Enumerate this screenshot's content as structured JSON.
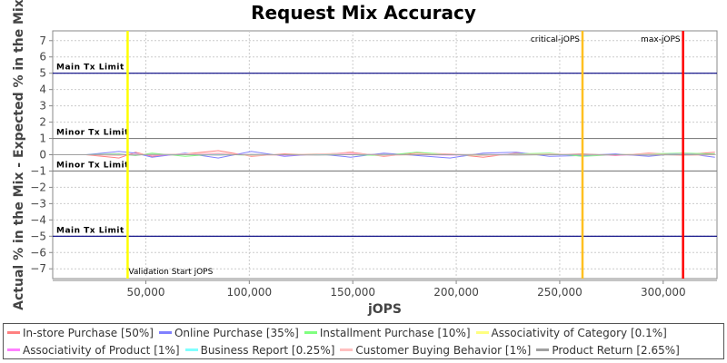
{
  "chart_data": {
    "type": "line",
    "title": "Request Mix Accuracy",
    "xlabel": "jOPS",
    "ylabel": "Actual % in the Mix - Expected % in the Mix",
    "xlim": [
      5000,
      326000
    ],
    "ylim": [
      -7.6,
      7.6
    ],
    "xticks": [
      50000,
      100000,
      150000,
      200000,
      250000,
      300000
    ],
    "xtick_labels": [
      "50,000",
      "100,000",
      "150,000",
      "200,000",
      "250,000",
      "300,000"
    ],
    "yticks": [
      -7,
      -6,
      -5,
      -4,
      -3,
      -2,
      -1,
      0,
      1,
      2,
      3,
      4,
      5,
      6,
      7
    ],
    "grid": true,
    "legend_position": "bottom",
    "horizontal_markers": [
      {
        "label": "Main Tx Limit",
        "value": 5,
        "color": "#000080"
      },
      {
        "label": "Minor Tx Limit",
        "value": 1,
        "color": "#808080"
      },
      {
        "label": "Minor Tx Limit",
        "value": -1,
        "color": "#808080"
      },
      {
        "label": "Main Tx Limit",
        "value": -5,
        "color": "#000080"
      }
    ],
    "vertical_markers": [
      {
        "label": "Validation Start jOPS",
        "value": 41200,
        "color": "#ffff00"
      },
      {
        "label": "critical-jOPS",
        "value": 261000,
        "color": "#ffc020"
      },
      {
        "label": "max-jOPS",
        "value": 309600,
        "color": "#ff0000"
      }
    ],
    "x": [
      5000,
      21000,
      37000,
      45000,
      53000,
      69000,
      85000,
      101000,
      117000,
      133000,
      149000,
      165000,
      181000,
      197000,
      213000,
      229000,
      245000,
      261000,
      277000,
      293000,
      309000,
      325000
    ],
    "series": [
      {
        "name": "In-store Purchase [50%]",
        "color": "#ff8080",
        "values": [
          0,
          0,
          -0.2,
          0.15,
          -0.1,
          0.05,
          0.25,
          -0.1,
          0.05,
          0.0,
          0.15,
          -0.1,
          0.1,
          0.05,
          -0.15,
          0.1,
          0.0,
          0.05,
          -0.05,
          0.1,
          0.0,
          0.15
        ]
      },
      {
        "name": "Online Purchase [35%]",
        "color": "#8080ff",
        "values": [
          0,
          0,
          0.2,
          0.1,
          -0.15,
          0.1,
          -0.2,
          0.2,
          -0.1,
          0.05,
          -0.15,
          0.1,
          -0.05,
          -0.2,
          0.1,
          0.15,
          -0.1,
          -0.05,
          0.05,
          -0.1,
          0.1,
          -0.15
        ]
      },
      {
        "name": "Installment Purchase [10%]",
        "color": "#80ff80",
        "values": [
          0,
          0,
          0.05,
          -0.05,
          0.1,
          -0.1,
          0.05,
          -0.05,
          0.0,
          0.05,
          0.0,
          -0.05,
          0.15,
          0.0,
          -0.05,
          0.05,
          0.1,
          -0.1,
          0.0,
          0.05,
          0.1,
          0.05
        ]
      },
      {
        "name": "Associativity of Category [0.1%]",
        "color": "#ffff80",
        "values": [
          0,
          0,
          0,
          0,
          0,
          0,
          0,
          0,
          0,
          0,
          0,
          0,
          0,
          0,
          0,
          0,
          0,
          0,
          0,
          0,
          0,
          0
        ]
      },
      {
        "name": "Associativity of Product [1%]",
        "color": "#ff80ff",
        "values": [
          0,
          0,
          0,
          0.02,
          -0.02,
          0,
          0.02,
          0,
          -0.02,
          0,
          0.02,
          0,
          0,
          -0.02,
          0,
          0.02,
          0,
          0,
          -0.02,
          0,
          0.02,
          0
        ]
      },
      {
        "name": "Business Report [0.25%]",
        "color": "#80ffff",
        "values": [
          0,
          0,
          0,
          0,
          0,
          0,
          0,
          0,
          0,
          0,
          0,
          0,
          0,
          0,
          0,
          0,
          0,
          0,
          0,
          0,
          0,
          0
        ]
      },
      {
        "name": "Customer Buying Behavior [1%]",
        "color": "#ffc0c0",
        "values": [
          0,
          0,
          -0.05,
          0.05,
          0,
          0.05,
          0.1,
          -0.05,
          0,
          0.05,
          0.1,
          -0.05,
          0,
          0.05,
          -0.05,
          0,
          0.05,
          0,
          0,
          0.05,
          -0.05,
          0
        ]
      },
      {
        "name": "Product Return [2.65%]",
        "color": "#a0a0a0",
        "values": [
          0,
          0,
          0.02,
          -0.02,
          0.02,
          0,
          -0.02,
          0.02,
          0,
          -0.02,
          0,
          0.02,
          0,
          0,
          0.02,
          -0.02,
          0,
          0.02,
          0,
          -0.02,
          0,
          0.02
        ]
      }
    ]
  }
}
